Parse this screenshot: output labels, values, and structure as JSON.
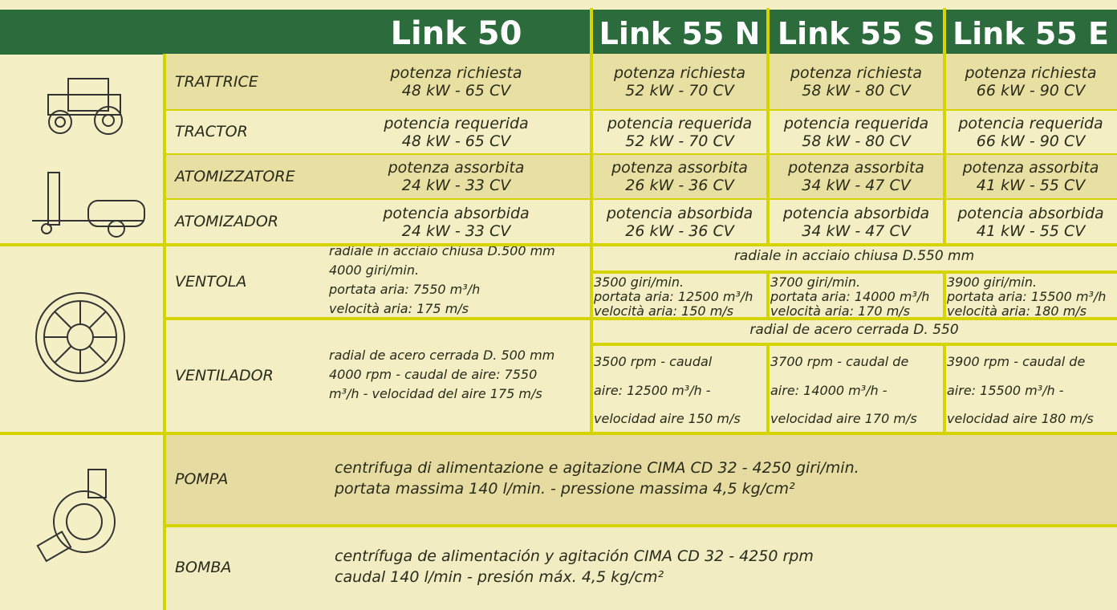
{
  "header": {
    "columns": [
      "Link 50",
      "Link 55 N",
      "Link 55 S",
      "Link 55 E"
    ]
  },
  "rows": [
    {
      "label": "TRATTRICE",
      "cells": [
        [
          "potenza richiesta",
          "48 kW - 65 CV"
        ],
        [
          "potenza richiesta",
          "52 kW - 70 CV"
        ],
        [
          "potenza richiesta",
          "58 kW - 80 CV"
        ],
        [
          "potenza richiesta",
          "66 kW - 90 CV"
        ]
      ]
    },
    {
      "label": "TRACTOR",
      "cells": [
        [
          "potencia requerida",
          "48 kW - 65 CV"
        ],
        [
          "potencia requerida",
          "52 kW - 70 CV"
        ],
        [
          "potencia requerida",
          "58 kW - 80 CV"
        ],
        [
          "potencia requerida",
          "66 kW - 90 CV"
        ]
      ]
    },
    {
      "label": "ATOMIZZATORE",
      "cells": [
        [
          "potenza assorbita",
          "24 kW - 33 CV"
        ],
        [
          "potenza assorbita",
          "26 kW - 36 CV"
        ],
        [
          "potenza assorbita",
          "34 kW - 47 CV"
        ],
        [
          "potenza assorbita",
          "41 kW - 55 CV"
        ]
      ]
    },
    {
      "label": "ATOMIZADOR",
      "cells": [
        [
          "potencia absorbida",
          "24 kW - 33 CV"
        ],
        [
          "potencia absorbida",
          "26 kW - 36 CV"
        ],
        [
          "potencia absorbida",
          "34 kW - 47 CV"
        ],
        [
          "potencia absorbida",
          "41 kW - 55 CV"
        ]
      ]
    },
    {
      "label": "VENTOLA",
      "cells": [
        [
          "radiale in acciaio chiusa D.500 mm",
          "4000 giri/min.",
          "portata aria: 7550 m³/h",
          "velocità aria: 175 m/s"
        ]
      ],
      "span_text": "radiale in acciaio chiusa D.550 mm",
      "span_cells": [
        [
          "3500 giri/min.",
          "portata aria: 12500 m³/h",
          "velocità aria: 150 m/s"
        ],
        [
          "3700 giri/min.",
          "portata aria: 14000 m³/h",
          "velocità aria: 170 m/s"
        ],
        [
          "3900 giri/min.",
          "portata aria: 15500 m³/h",
          "velocità aria: 180 m/s"
        ]
      ]
    },
    {
      "label": "VENTILADOR",
      "cells": [
        [
          "radial de acero cerrada D. 500 mm",
          "4000 rpm - caudal de aire: 7550",
          "m³/h - velocidad del aire 175 m/s"
        ]
      ],
      "span_text": "radial de acero cerrada D. 550",
      "span_cells": [
        [
          "3500 rpm - caudal",
          "aire: 12500 m³/h -",
          "velocidad aire 150 m/s"
        ],
        [
          "3700 rpm - caudal de",
          "aire: 14000 m³/h -",
          "velocidad aire 170 m/s"
        ],
        [
          "3900 rpm - caudal de",
          "aire: 15500 m³/h -",
          "velocidad aire 180 m/s"
        ]
      ]
    },
    {
      "label": "POMPA",
      "lines": [
        "centrifuga di alimentazione e agitazione CIMA CD 32 - 4250 giri/min.",
        "portata massima 140 l/min. - pressione massima 4,5 kg/cm²"
      ]
    },
    {
      "label": "BOMBA",
      "lines": [
        "centrífuga de alimentación y agitación CIMA CD 32 - 4250 rpm",
        "caudal 140 l/min - presión máx. 4,5 kg/cm²"
      ]
    }
  ]
}
